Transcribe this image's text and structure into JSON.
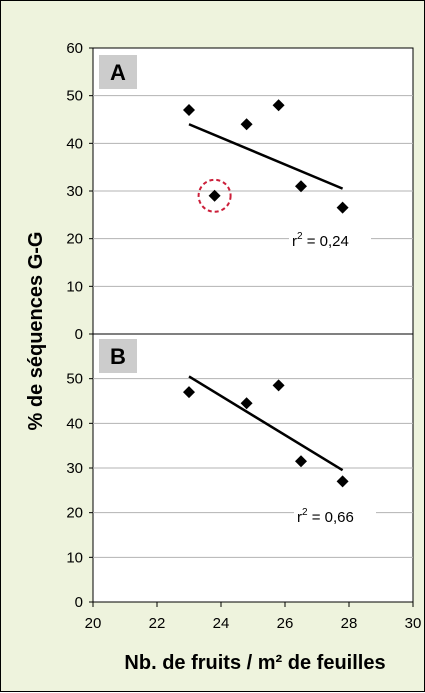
{
  "chart_data": {
    "type": "scatter",
    "xlabel": "Nb. de fruits / m² de feuilles",
    "ylabel": "% de séquences G-G",
    "xlim": [
      20,
      30
    ],
    "x_ticks": [
      "20",
      "22",
      "24",
      "26",
      "28",
      "30"
    ],
    "grid": "horizontal",
    "panels": [
      {
        "label": "A",
        "ylim": [
          0,
          60
        ],
        "y_ticks": [
          "0",
          "10",
          "20",
          "30",
          "40",
          "50",
          "60"
        ],
        "points": [
          {
            "x": 23.0,
            "y": 47
          },
          {
            "x": 23.8,
            "y": 29,
            "outlier": true
          },
          {
            "x": 24.8,
            "y": 44
          },
          {
            "x": 25.8,
            "y": 48
          },
          {
            "x": 26.5,
            "y": 31
          },
          {
            "x": 27.8,
            "y": 26.5
          }
        ],
        "trendline": {
          "x": [
            23.0,
            27.8
          ],
          "y": [
            44,
            30.5
          ]
        },
        "r2_prefix": "r",
        "r2_exp": "2",
        "r2_value": " = 0,24",
        "outlier_color": "#cc1f3a"
      },
      {
        "label": "B",
        "ylim": [
          0,
          60
        ],
        "y_ticks": [
          "0",
          "10",
          "20",
          "30",
          "40",
          "50"
        ],
        "points": [
          {
            "x": 23.0,
            "y": 47
          },
          {
            "x": 24.8,
            "y": 44.5
          },
          {
            "x": 25.8,
            "y": 48.5
          },
          {
            "x": 26.5,
            "y": 31.5
          },
          {
            "x": 27.8,
            "y": 27
          }
        ],
        "trendline": {
          "x": [
            23.0,
            27.8
          ],
          "y": [
            50.5,
            29.5
          ]
        },
        "r2_prefix": "r",
        "r2_exp": "2",
        "r2_value": " = 0,66"
      }
    ],
    "colors": {
      "background": "#eef3dd",
      "plot_area": "#ffffff",
      "points": "#000000",
      "grid": "#b3b3b3",
      "label_box": "#cccccc"
    }
  }
}
